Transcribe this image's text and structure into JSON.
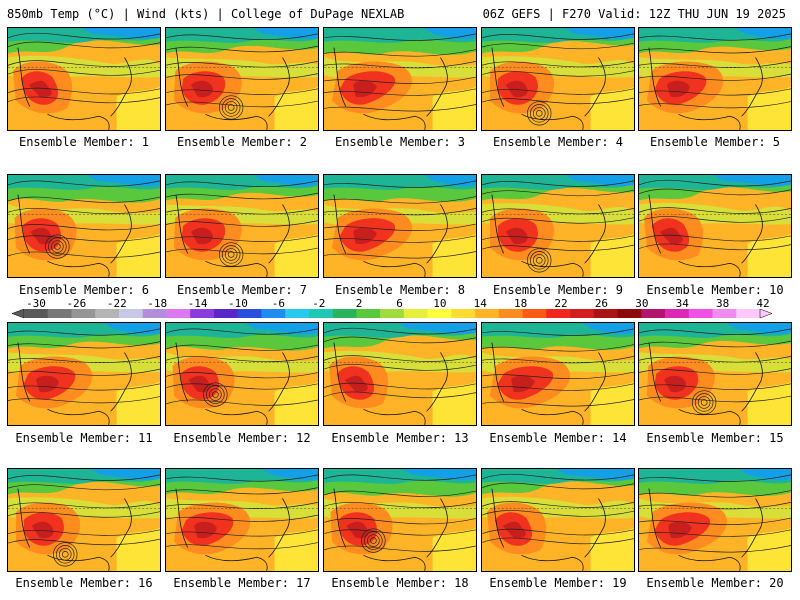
{
  "header": {
    "left": "850mb Temp (°C) | Wind (kts) | College of DuPage NEXLAB",
    "right": "06Z GEFS | F270 Valid: 12Z THU JUN 19 2025"
  },
  "members": [
    {
      "label": "Ensemble Member: 1",
      "variant": 0
    },
    {
      "label": "Ensemble Member: 2",
      "variant": 1
    },
    {
      "label": "Ensemble Member: 3",
      "variant": 2
    },
    {
      "label": "Ensemble Member: 4",
      "variant": 3
    },
    {
      "label": "Ensemble Member: 5",
      "variant": 4
    },
    {
      "label": "Ensemble Member: 6",
      "variant": 5
    },
    {
      "label": "Ensemble Member: 7",
      "variant": 1
    },
    {
      "label": "Ensemble Member: 8",
      "variant": 2
    },
    {
      "label": "Ensemble Member: 9",
      "variant": 3
    },
    {
      "label": "Ensemble Member: 10",
      "variant": 0
    },
    {
      "label": "Ensemble Member: 11",
      "variant": 4
    },
    {
      "label": "Ensemble Member: 12",
      "variant": 5
    },
    {
      "label": "Ensemble Member: 13",
      "variant": 0
    },
    {
      "label": "Ensemble Member: 14",
      "variant": 2
    },
    {
      "label": "Ensemble Member: 15",
      "variant": 1
    },
    {
      "label": "Ensemble Member: 16",
      "variant": 3
    },
    {
      "label": "Ensemble Member: 17",
      "variant": 4
    },
    {
      "label": "Ensemble Member: 18",
      "variant": 5
    },
    {
      "label": "Ensemble Member: 19",
      "variant": 0
    },
    {
      "label": "Ensemble Member: 20",
      "variant": 2
    }
  ],
  "colorbar": {
    "labels": [
      "-30",
      "-26",
      "-22",
      "-18",
      "-14",
      "-10",
      "-6",
      "-2",
      "2",
      "6",
      "10",
      "14",
      "18",
      "22",
      "26",
      "30",
      "34",
      "38",
      "42"
    ],
    "colors": [
      "#5a5a5a",
      "#787878",
      "#969696",
      "#b4b4b4",
      "#c8c8e6",
      "#b48cdc",
      "#dc78f0",
      "#8c3cdc",
      "#5a28c8",
      "#2850dc",
      "#1e8cf0",
      "#28c8f0",
      "#1ec8b4",
      "#28b45a",
      "#5ac83c",
      "#a0dc3c",
      "#e6f03c",
      "#ffff3c",
      "#ffdc32",
      "#ffb428",
      "#ff8c1e",
      "#ff5a14",
      "#f0281e",
      "#d21e1e",
      "#aa1414",
      "#8c0a0a",
      "#b4146e",
      "#dc28b4",
      "#f050e6",
      "#f08cf0",
      "#ffc8ff"
    ]
  },
  "map_colors": {
    "cold": "#14a0e6",
    "cool": "#1eb496",
    "mild": "#5ac83c",
    "warm": "#d2e63c",
    "yellow": "#fff03c",
    "orange": "#ffb428",
    "deep_orange": "#ff8c1e",
    "red": "#f0321e",
    "dark_red": "#c81e1e"
  }
}
